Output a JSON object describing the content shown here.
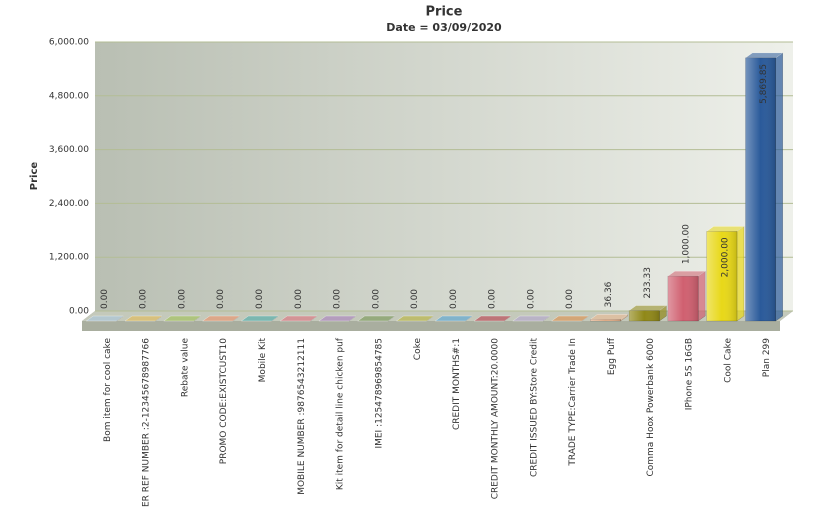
{
  "chart_data": {
    "type": "bar3d",
    "title": "Price",
    "subtitle": "Date = 03/09/2020",
    "y_label": "Price",
    "categories": [
      "Bom item for cool cake",
      "ER REF NUMBER :2-12345678987766",
      "Rebate value",
      "PROMO CODE:EXISTCUST10",
      "Mobile Kit",
      "MOBILE NUMBER :9876543212111",
      "Kit item for detail line chicken puf",
      "IMEI :125478969854785",
      "Coke",
      "CREDIT MONTHS#:1",
      "CREDIT MONTHLY AMOUNT:20.0000",
      "CREDIT ISSUED BY:Store Credit",
      "TRADE TYPE:Carrier Trade In",
      "Egg Puff",
      "Comma Hoox Powerbank 6000",
      "IPhone 5S 16GB",
      "Cool Cake",
      "Plan 299"
    ],
    "values": [
      0,
      0,
      0,
      0,
      0,
      0,
      0,
      0,
      0,
      0,
      0,
      0,
      0,
      36.36,
      233.33,
      1000,
      2000,
      5869.85
    ],
    "value_labels": [
      "0.00",
      "0.00",
      "0.00",
      "0.00",
      "0.00",
      "0.00",
      "0.00",
      "0.00",
      "0.00",
      "0.00",
      "0.00",
      "0.00",
      "0.00",
      "36.36",
      "233.33",
      "1,000.00",
      "2,000.00",
      "5,869.85"
    ],
    "colors": [
      "#a8c4e0",
      "#e8b84a",
      "#9cc04a",
      "#f08a60",
      "#40a8a8",
      "#e06878",
      "#a878c0",
      "#70904a",
      "#b8b030",
      "#4aa0d8",
      "#b83040",
      "#b0a0d0",
      "#e08840",
      "#f0b890",
      "#908818",
      "#d06070",
      "#e8d818",
      "#2a5a9a"
    ],
    "ylim": [
      0,
      6000
    ],
    "yticks": [
      {
        "value": 0,
        "label": "0.00"
      },
      {
        "value": 1200,
        "label": "1,200.00"
      },
      {
        "value": 2400,
        "label": "2,400.00"
      },
      {
        "value": 3600,
        "label": "3,600.00"
      },
      {
        "value": 4800,
        "label": "4,800.00"
      },
      {
        "value": 6000,
        "label": "6,000.00"
      }
    ],
    "grid": true
  }
}
